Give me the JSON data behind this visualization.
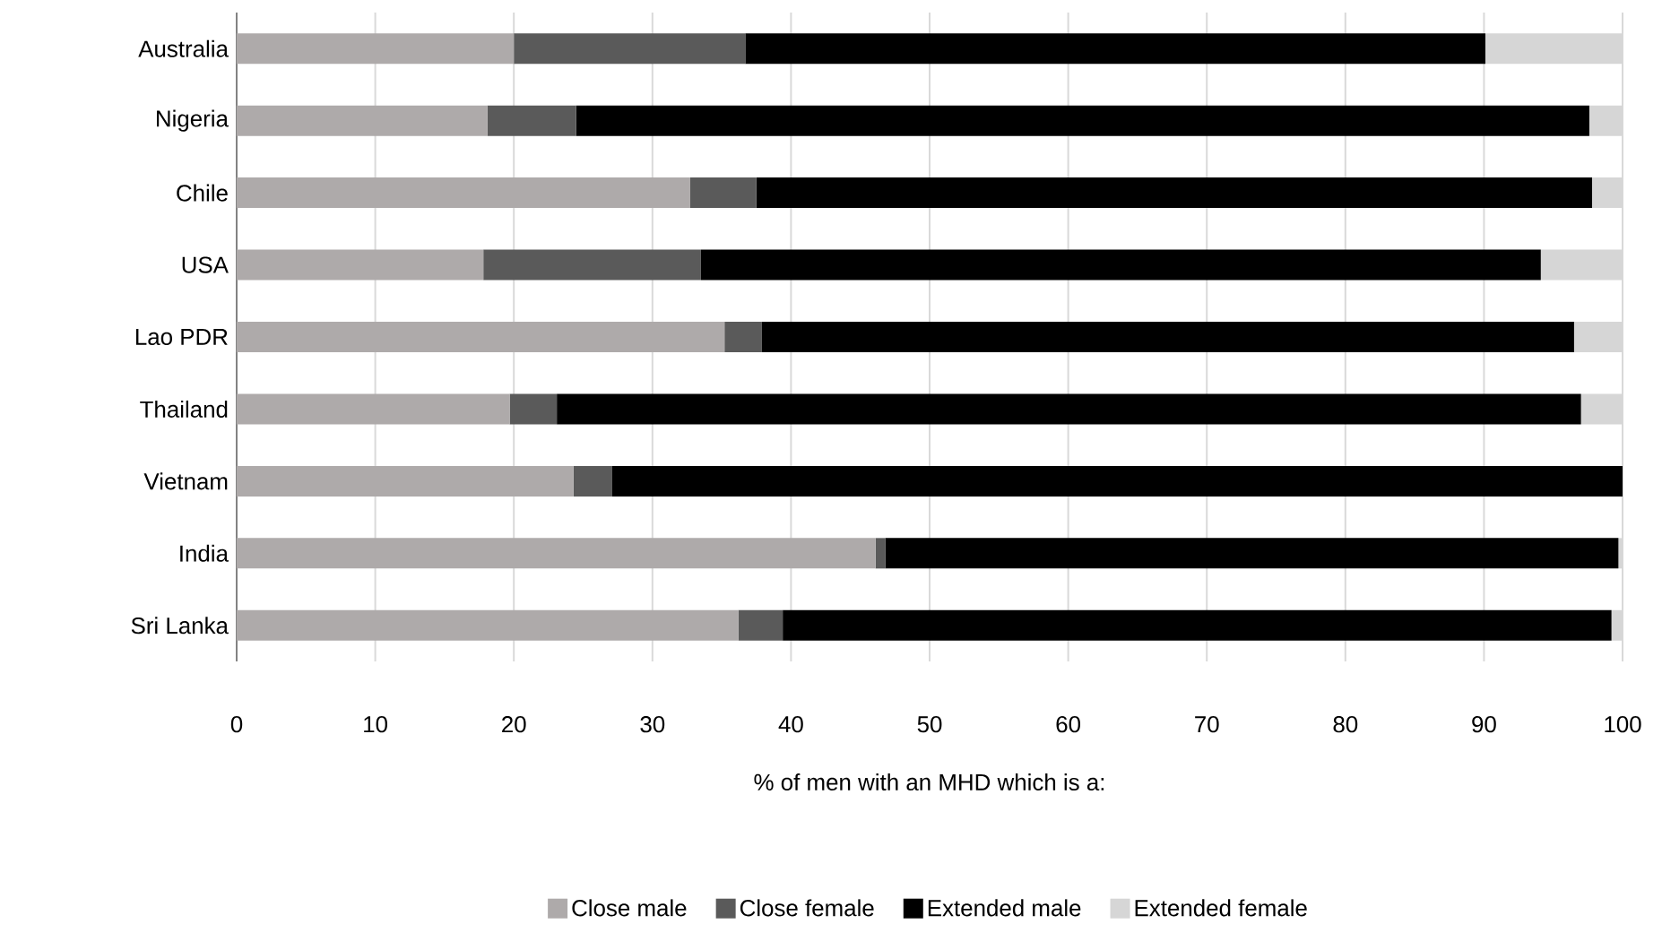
{
  "chart_data": {
    "type": "bar",
    "orientation": "horizontal",
    "stacked": true,
    "xlabel": "% of men with an MHD which is a:",
    "categories": [
      "Australia",
      "Nigeria",
      "Chile",
      "USA",
      "Lao PDR",
      "Thailand",
      "Vietnam",
      "India",
      "Sri Lanka"
    ],
    "series": [
      {
        "name": "Close male",
        "color": "#aeaaaa",
        "values": [
          20,
          18.1,
          32.7,
          17.8,
          35.2,
          19.7,
          24.3,
          46.1,
          36.2
        ]
      },
      {
        "name": "Close female",
        "color": "#5a5a5a",
        "values": [
          16.7,
          6.4,
          4.8,
          15.7,
          2.7,
          3.4,
          2.8,
          0.7,
          3.2
        ]
      },
      {
        "name": "Extended male",
        "color": "#000000",
        "values": [
          53.4,
          73.1,
          60.3,
          60.6,
          58.6,
          73.9,
          72.9,
          52.9,
          59.8
        ]
      },
      {
        "name": "Extended female",
        "color": "#d6d6d6",
        "values": [
          9.9,
          2.4,
          2.2,
          5.9,
          3.5,
          3.0,
          0.0,
          0.3,
          0.8
        ]
      }
    ],
    "xlim": [
      0,
      100
    ],
    "xticks": [
      0,
      10,
      20,
      30,
      40,
      50,
      60,
      70,
      80,
      90,
      100
    ],
    "grid": "x",
    "legend": "bottom"
  }
}
